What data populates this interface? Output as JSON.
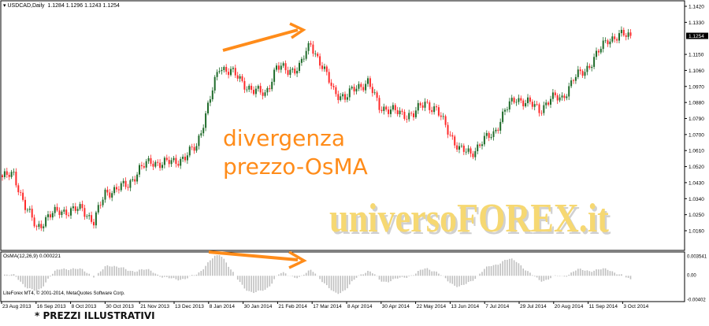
{
  "header": {
    "symbol": "USDCAD,Daily",
    "ohlc": "1.1284 1.1296 1.1243 1.1254"
  },
  "oscillator": {
    "label": "OsMA(12,26,9) 0.000221",
    "axis_top": "0.003541",
    "axis_zero": "0.00",
    "axis_bottom": "-0.00402"
  },
  "copyright": "LiteForex MT4, © 2001-2014, MetaQuotes Software Corp.",
  "annotation": {
    "line1": "divergenza",
    "line2": "prezzo-OsMA",
    "color": "#ff8c1a"
  },
  "watermark": "universoFOREX.it",
  "footer": "* PREZZI ILLUSTRATIVI",
  "chart_data": {
    "type": "candlestick",
    "title": "USDCAD,Daily",
    "last_price": "1.1254",
    "y_ticks": [
      "1.1420",
      "1.1330",
      "1.1150",
      "1.1060",
      "1.0970",
      "1.0880",
      "1.0790",
      "1.0700",
      "1.0610",
      "1.0520",
      "1.0430",
      "1.0340",
      "1.0250",
      "1.0160"
    ],
    "ylim": [
      1.016,
      1.142
    ],
    "x_ticks": [
      "23 Aug 2013",
      "16 Sep 2013",
      "8 Oct 2013",
      "30 Oct 2013",
      "21 Nov 2013",
      "13 Dec 2013",
      "8 Jan 2014",
      "30 Jan 2014",
      "21 Feb 2014",
      "17 Mar 2014",
      "8 Apr 2014",
      "30 Apr 2014",
      "22 May 2014",
      "13 Jun 2014",
      "7 Jul 2014",
      "29 Jul 2014",
      "20 Aug 2014",
      "11 Sep 2014",
      "3 Oct 2014"
    ],
    "approx_closes_every_5_bars": [
      1.0461,
      1.0474,
      1.0297,
      1.0174,
      1.024,
      1.0271,
      1.0271,
      1.0284,
      1.0209,
      1.0372,
      1.0395,
      1.0417,
      1.0505,
      1.0549,
      1.0536,
      1.0549,
      1.0571,
      1.0638,
      1.0859,
      1.108,
      1.1058,
      1.0991,
      1.0947,
      1.0925,
      1.108,
      1.1058,
      1.108,
      1.1212,
      1.108,
      1.0947,
      1.0903,
      1.0969,
      1.0991,
      1.0859,
      1.0837,
      1.0814,
      1.0814,
      1.0881,
      1.0837,
      1.0726,
      1.0616,
      1.0593,
      1.066,
      1.0704,
      1.0837,
      1.0903,
      1.0881,
      1.0837,
      1.0903,
      1.0903,
      1.1013,
      1.1058,
      1.1146,
      1.1234,
      1.1256,
      1.1254
    ],
    "up_color": "#1f6b2a",
    "down_color": "#ff2a2a",
    "osma_color": "#c0c0c0"
  }
}
